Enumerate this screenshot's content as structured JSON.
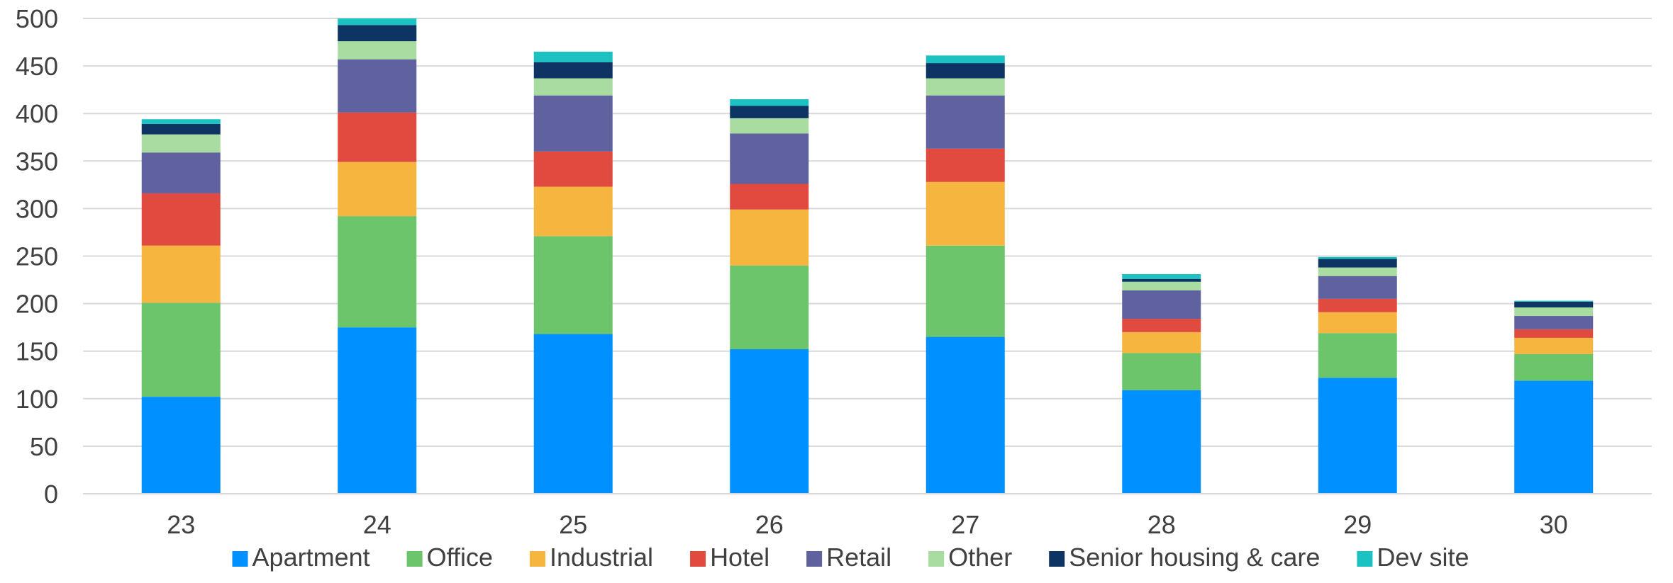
{
  "chart_data": {
    "type": "bar",
    "stacked": true,
    "categories": [
      "23",
      "24",
      "25",
      "26",
      "27",
      "28",
      "29",
      "30"
    ],
    "series": [
      {
        "name": "Apartment",
        "color": "#0090ff",
        "values": [
          102,
          175,
          168,
          152,
          165,
          109,
          122,
          119
        ]
      },
      {
        "name": "Office",
        "color": "#6cc56a",
        "values": [
          99,
          117,
          103,
          88,
          96,
          39,
          47,
          28
        ]
      },
      {
        "name": "Industrial",
        "color": "#f5b53f",
        "values": [
          60,
          57,
          52,
          59,
          67,
          22,
          22,
          17
        ]
      },
      {
        "name": "Hotel",
        "color": "#e04a3f",
        "values": [
          55,
          52,
          37,
          27,
          35,
          14,
          14,
          9
        ]
      },
      {
        "name": "Retail",
        "color": "#5f629e",
        "values": [
          43,
          56,
          59,
          53,
          56,
          30,
          24,
          14
        ]
      },
      {
        "name": "Other",
        "color": "#a9dca0",
        "values": [
          19,
          19,
          18,
          16,
          18,
          9,
          9,
          9
        ]
      },
      {
        "name": "Senior housing & care",
        "color": "#0d3463",
        "values": [
          11,
          17,
          17,
          13,
          16,
          3,
          9,
          6
        ]
      },
      {
        "name": "Dev site",
        "color": "#1cc1c1",
        "values": [
          5,
          7,
          11,
          7,
          8,
          5,
          2,
          1
        ]
      }
    ],
    "ylim": [
      0,
      500
    ],
    "yticks": [
      0,
      50,
      100,
      150,
      200,
      250,
      300,
      350,
      400,
      450,
      500
    ],
    "grid": true,
    "legend": "bottom"
  }
}
